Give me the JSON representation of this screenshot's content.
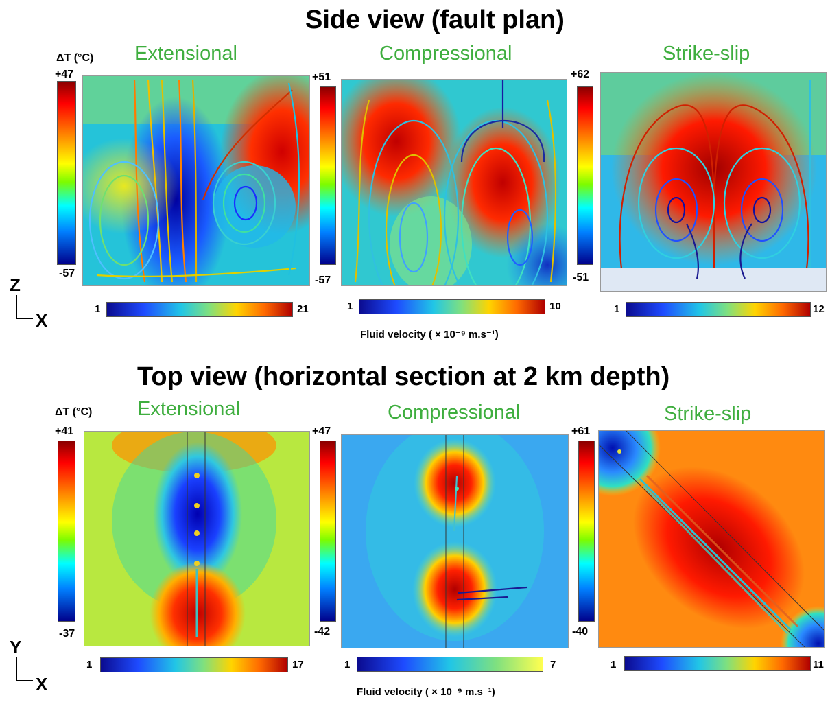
{
  "side": {
    "title": "Side view (fault plan)",
    "dt_label": "ΔT (°C)",
    "panels": [
      {
        "name": "Extensional",
        "t_max": "+47",
        "t_min": "-57",
        "v_min": "1",
        "v_max": "21"
      },
      {
        "name": "Compressional",
        "t_max": "+51",
        "t_min": "-57",
        "v_min": "1",
        "v_max": "10"
      },
      {
        "name": "Strike-slip",
        "t_max": "+62",
        "t_min": "-51",
        "v_min": "1",
        "v_max": "12"
      }
    ],
    "axis_v": "Z",
    "axis_h": "X",
    "velocity_label": "Fluid velocity ( × 10⁻⁹ m.s⁻¹)"
  },
  "top": {
    "title": "Top view (horizontal section at 2 km depth)",
    "dt_label": "ΔT (°C)",
    "panels": [
      {
        "name": "Extensional",
        "t_max": "+41",
        "t_min": "-37",
        "v_min": "1",
        "v_max": "17"
      },
      {
        "name": "Compressional",
        "t_max": "+47",
        "t_min": "-42",
        "v_min": "1",
        "v_max": "7"
      },
      {
        "name": "Strike-slip",
        "t_max": "+61",
        "t_min": "-40",
        "v_min": "1",
        "v_max": "11"
      }
    ],
    "axis_v": "Y",
    "axis_h": "X",
    "velocity_label": "Fluid velocity ( × 10⁻⁹ m.s⁻¹)"
  }
}
